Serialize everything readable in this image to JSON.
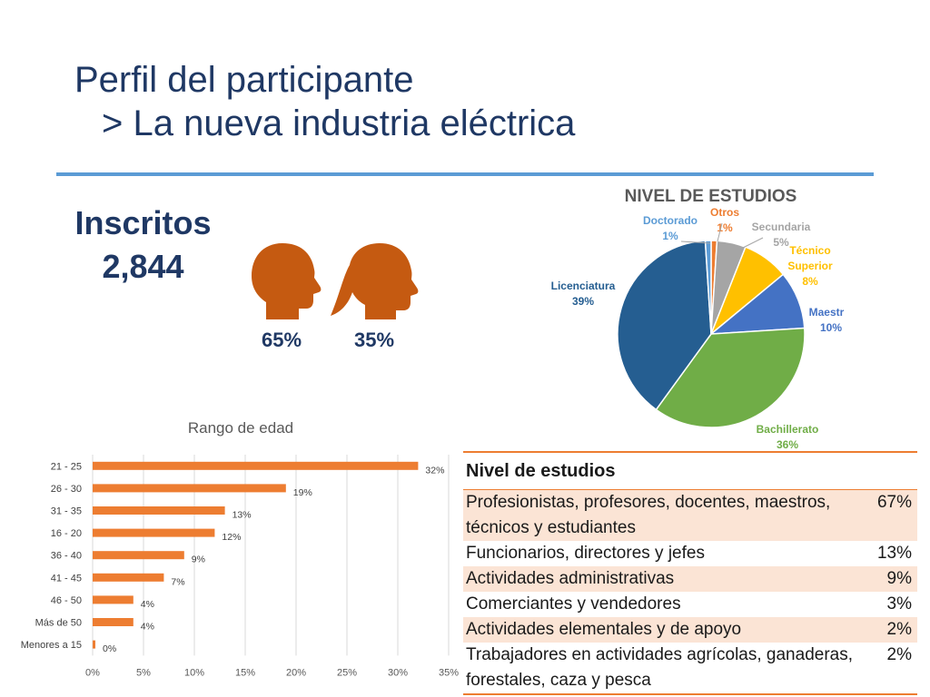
{
  "title": "Perfil del participante",
  "subtitle": "> La nueva industria eléctrica",
  "inscritos": {
    "label": "Inscritos",
    "value": "2,844"
  },
  "gender": {
    "male_pct": "65%",
    "female_pct": "35%"
  },
  "icons": {
    "male": "male-head-icon",
    "female": "female-head-icon"
  },
  "colors": {
    "title": "#1f3864",
    "rule": "#5b9bd5",
    "bar": "#ed7d31",
    "table_shade": "#fbe4d5"
  },
  "chart_data": [
    {
      "type": "pie",
      "title": "NIVEL DE ESTUDIOS",
      "slices": [
        {
          "label": "Otros",
          "value": 1,
          "value_label": "1%",
          "color": "#ed7d31"
        },
        {
          "label": "Secundaria",
          "value": 5,
          "value_label": "5%",
          "color": "#a5a5a5"
        },
        {
          "label": "Técnico Superior",
          "value": 8,
          "value_label": "8%",
          "color": "#ffc000"
        },
        {
          "label": "Maestria",
          "value": 10,
          "value_label": "10%",
          "color": "#4472c4"
        },
        {
          "label": "Bachillerato",
          "value": 36,
          "value_label": "36%",
          "color": "#70ad47"
        },
        {
          "label": "Licenciatura",
          "value": 39,
          "value_label": "39%",
          "color": "#255e91"
        },
        {
          "label": "Doctorado",
          "value": 1,
          "value_label": "1%",
          "color": "#5b9bd5"
        }
      ]
    },
    {
      "type": "bar",
      "orientation": "horizontal",
      "title": "Rango de edad",
      "categories": [
        "21 - 25",
        "26 - 30",
        "31 - 35",
        "16 - 20",
        "36 - 40",
        "41 - 45",
        "46 - 50",
        "Más de 50",
        "Menores a 15"
      ],
      "values": [
        32,
        19,
        13,
        12,
        9,
        7,
        4,
        4,
        0
      ],
      "value_labels": [
        "32%",
        "19%",
        "13%",
        "12%",
        "9%",
        "7%",
        "4%",
        "4%",
        "0%"
      ],
      "xlim": [
        0,
        35
      ],
      "xticks": [
        "0%",
        "5%",
        "10%",
        "15%",
        "20%",
        "25%",
        "30%",
        "35%"
      ],
      "grid": true
    }
  ],
  "table": {
    "header": "Nivel de estudios",
    "rows": [
      {
        "label": "Profesionistas, profesores, docentes, maestros, técnicos y estudiantes",
        "value": "67%"
      },
      {
        "label": "Funcionarios, directores y jefes",
        "value": "13%"
      },
      {
        "label": "Actividades administrativas",
        "value": "9%"
      },
      {
        "label": "Comerciantes y vendedores",
        "value": "3%"
      },
      {
        "label": "Actividades elementales y de apoyo",
        "value": "2%"
      },
      {
        "label": "Trabajadores en actividades agrícolas, ganaderas, forestales, caza y pesca",
        "value": "2%"
      }
    ]
  }
}
